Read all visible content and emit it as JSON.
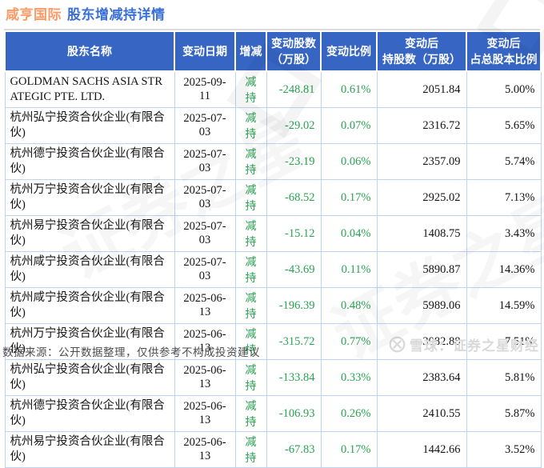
{
  "title": {
    "stock_name": "咸亨国际",
    "report_title": "股东增减持详情"
  },
  "chart_data": {
    "type": "table",
    "title": "咸亨国际 股东增减持详情",
    "columns": [
      "股东名称",
      "变动日期",
      "增减",
      "变动股数（万股）",
      "变动比例",
      "变动后持股数（万股）",
      "变动后占总股本比例"
    ],
    "column_lines": [
      [
        "股东名称"
      ],
      [
        "变动日期"
      ],
      [
        "增减"
      ],
      [
        "变动股数",
        "（万股）"
      ],
      [
        "变动比例"
      ],
      [
        "变动后",
        "持股数（万股）"
      ],
      [
        "变动后",
        "占总股本比例"
      ]
    ],
    "field_names": [
      "shareholder",
      "date",
      "direction",
      "change-shares",
      "change-ratio",
      "shares-after",
      "ratio-after"
    ],
    "rows": [
      [
        "GOLDMAN SACHS ASIA STRATEGIC PTE. LTD.",
        "2025-09-11",
        "减持",
        "-248.81",
        "0.61%",
        "2051.84",
        "5.00%"
      ],
      [
        "杭州弘宁投资合伙企业(有限合伙)",
        "2025-07-03",
        "减持",
        "-29.02",
        "0.07%",
        "2316.72",
        "5.65%"
      ],
      [
        "杭州德宁投资合伙企业(有限合伙)",
        "2025-07-03",
        "减持",
        "-23.19",
        "0.06%",
        "2357.09",
        "5.74%"
      ],
      [
        "杭州万宁投资合伙企业(有限合伙)",
        "2025-07-03",
        "减持",
        "-68.52",
        "0.17%",
        "2925.02",
        "7.13%"
      ],
      [
        "杭州易宁投资合伙企业(有限合伙)",
        "2025-07-03",
        "减持",
        "-15.12",
        "0.04%",
        "1408.75",
        "3.43%"
      ],
      [
        "杭州咸宁投资合伙企业(有限合伙)",
        "2025-07-03",
        "减持",
        "-43.69",
        "0.11%",
        "5890.87",
        "14.36%"
      ],
      [
        "杭州咸宁投资合伙企业(有限合伙)",
        "2025-06-13",
        "减持",
        "-196.39",
        "0.48%",
        "5989.06",
        "14.59%"
      ],
      [
        "杭州万宁投资合伙企业(有限合伙)",
        "2025-06-13",
        "减持",
        "-315.72",
        "0.77%",
        "3082.88",
        "7.51%"
      ],
      [
        "杭州弘宁投资合伙企业(有限合伙)",
        "2025-06-13",
        "减持",
        "-133.84",
        "0.33%",
        "2383.64",
        "5.81%"
      ],
      [
        "杭州德宁投资合伙企业(有限合伙)",
        "2025-06-13",
        "减持",
        "-106.93",
        "0.26%",
        "2410.55",
        "5.87%"
      ],
      [
        "杭州易宁投资合伙企业(有限合伙)",
        "2025-06-13",
        "减持",
        "-67.83",
        "0.17%",
        "1442.66",
        "3.52%"
      ]
    ]
  },
  "footer": {
    "source_note": "数据来源：公开数据整理，仅供参考不构成投资建议"
  },
  "watermark": {
    "brand": "雪球：证券之星财经",
    "logo": "xueqiu-logo",
    "bg_text": "证券之星"
  },
  "colors": {
    "header_bg": "#3665c4",
    "title_stock": "#fb9a66",
    "title_report": "#3a6fd8",
    "decrease_green": "#29a352",
    "cell_border": "#bfd4f0",
    "footer_gray": "#4d4d4d",
    "watermark_gray": "#d9d9d9"
  }
}
